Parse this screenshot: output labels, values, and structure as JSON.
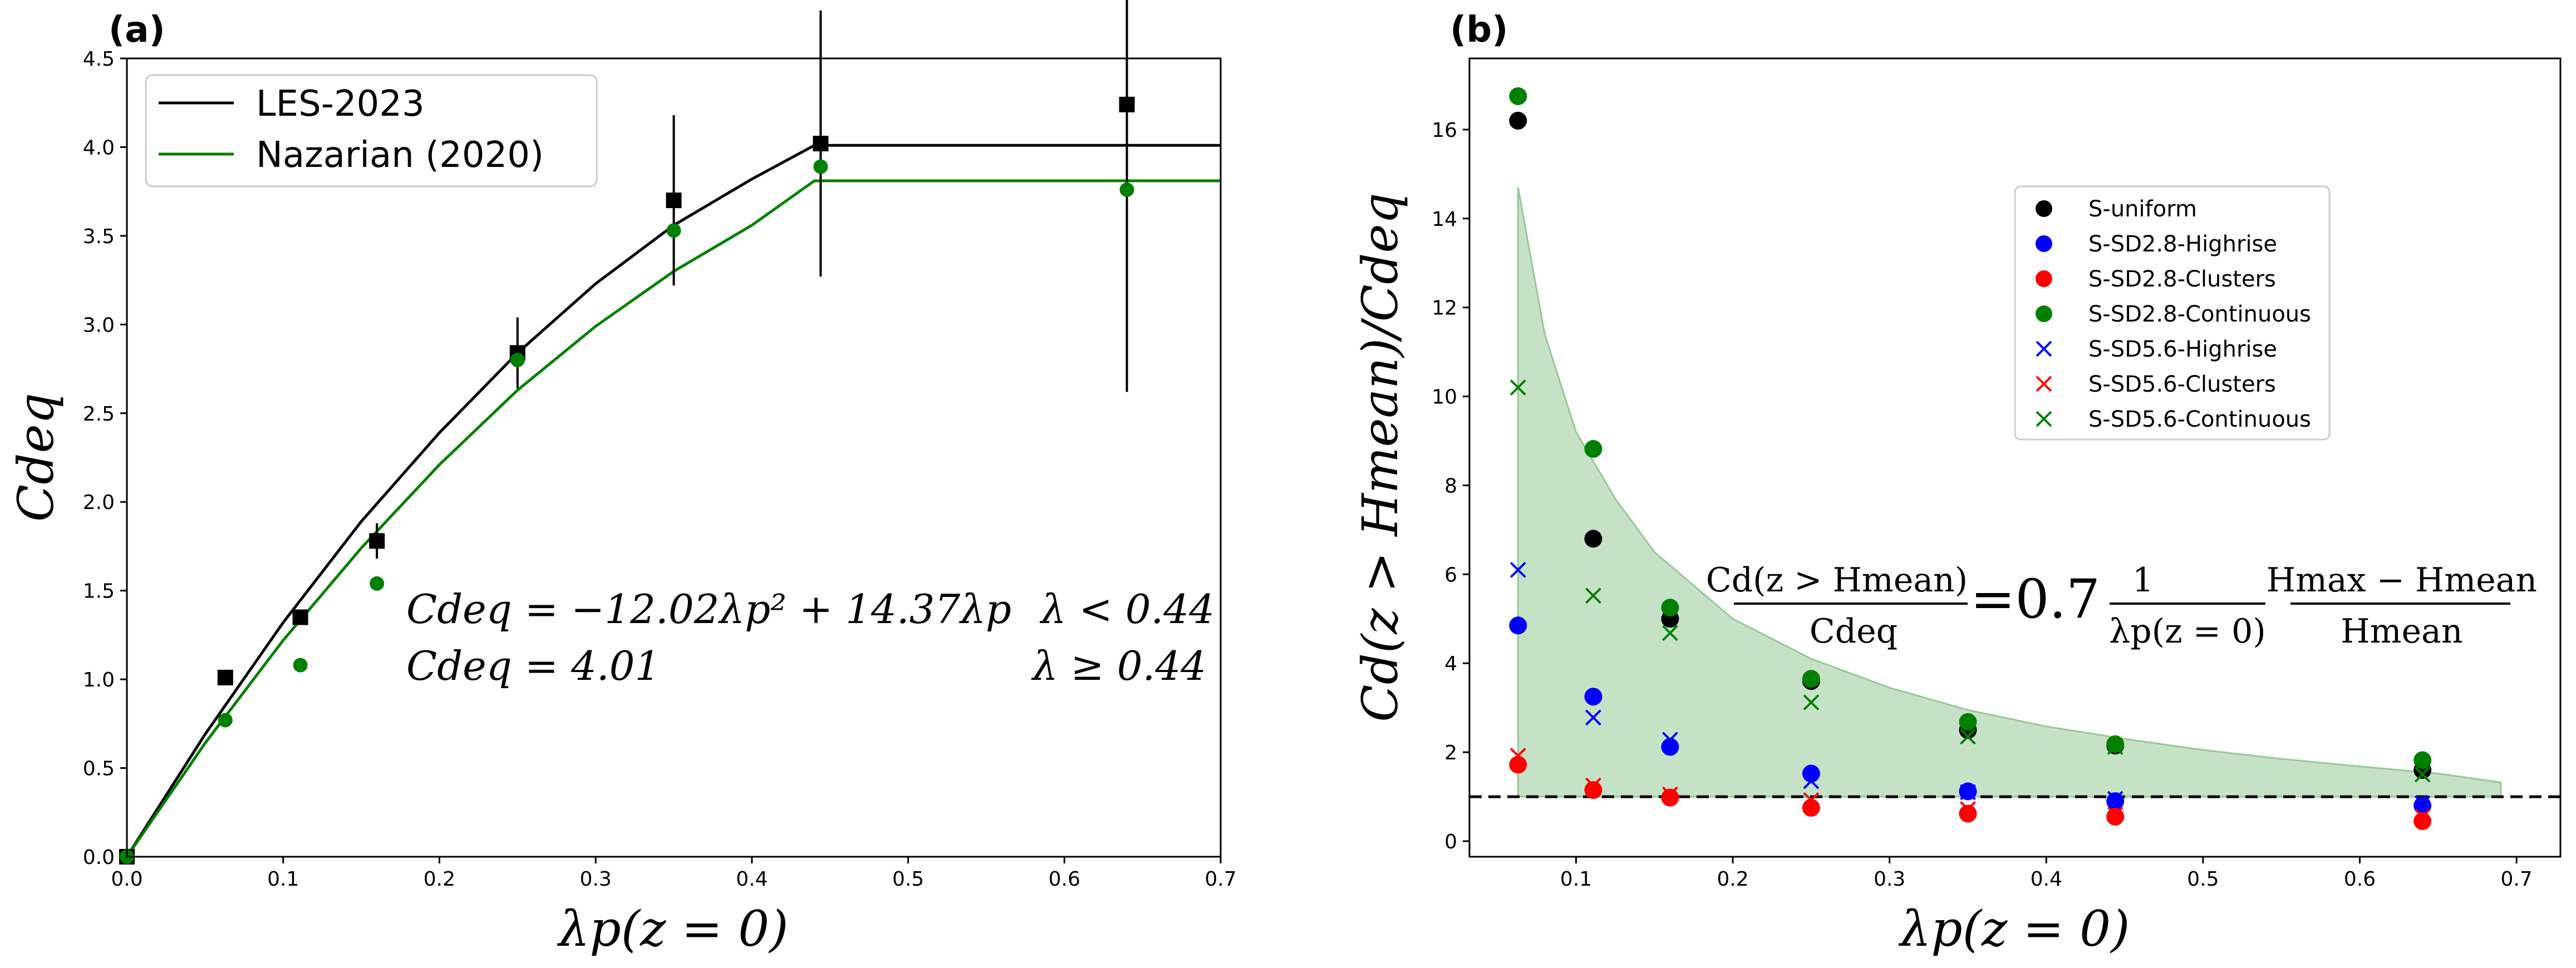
{
  "figure": {
    "panel_a_tag": "(a)",
    "panel_b_tag": "(b)",
    "equation_a_line1": "Cdeq = −12.02λp² + 14.37λp",
    "equation_a_cond1": "λ < 0.44",
    "equation_a_line2": "Cdeq = 4.01",
    "equation_a_cond2": "λ ≥ 0.44",
    "equation_b_num": "Cd(z > Hmean)",
    "equation_b_den": "Cdeq",
    "equation_b_coef": "=0.7",
    "equation_b_frac2_num": "1",
    "equation_b_frac2_den": "λp(z = 0)",
    "equation_b_frac3_num": "Hmax − Hmean",
    "equation_b_frac3_den": "Hmean"
  },
  "colors": {
    "black": "#000000",
    "green": "#008000",
    "blue": "#0000ff",
    "red": "#ff0000",
    "band_fill": "#c6e2c6",
    "band_edge": "#96c896"
  },
  "chart_data": [
    {
      "type": "line",
      "panel": "(a)",
      "xlabel": "λp(z = 0)",
      "ylabel": "Cdeq",
      "xlim": [
        0.0,
        0.7
      ],
      "ylim": [
        0.0,
        4.5
      ],
      "xticks": [
        "0.0",
        "0.1",
        "0.2",
        "0.3",
        "0.4",
        "0.5",
        "0.6",
        "0.7"
      ],
      "yticks": [
        "0.0",
        "0.5",
        "1.0",
        "1.5",
        "2.0",
        "2.5",
        "3.0",
        "3.5",
        "4.0",
        "4.5"
      ],
      "legend_position": "top-left",
      "grid": false,
      "series": [
        {
          "name": "LES-2023",
          "kind": "curve",
          "color": "#000000",
          "x": [
            0.0,
            0.05,
            0.1,
            0.15,
            0.2,
            0.25,
            0.3,
            0.35,
            0.4,
            0.44,
            0.45,
            0.5,
            0.55,
            0.6,
            0.65,
            0.7
          ],
          "y": [
            0.0,
            0.69,
            1.32,
            1.89,
            2.39,
            2.84,
            3.23,
            3.56,
            3.82,
            4.01,
            4.01,
            4.01,
            4.01,
            4.01,
            4.01,
            4.01
          ]
        },
        {
          "name": "Nazarian (2020)",
          "kind": "curve",
          "color": "#008000",
          "x": [
            0.0,
            0.05,
            0.1,
            0.15,
            0.2,
            0.25,
            0.3,
            0.35,
            0.4,
            0.44,
            0.45,
            0.5,
            0.55,
            0.6,
            0.65,
            0.7
          ],
          "y": [
            0.0,
            0.64,
            1.22,
            1.74,
            2.21,
            2.63,
            2.99,
            3.3,
            3.56,
            3.81,
            3.81,
            3.81,
            3.81,
            3.81,
            3.81,
            3.81
          ]
        },
        {
          "name": "",
          "kind": "square-markers",
          "color": "#000000",
          "x": [
            0.0,
            0.063,
            0.111,
            0.16,
            0.25,
            0.35,
            0.444,
            0.64
          ],
          "y": [
            0.0,
            1.01,
            1.35,
            1.78,
            2.84,
            3.7,
            4.02,
            4.24
          ],
          "err": [
            0,
            0,
            0,
            0.1,
            0.2,
            0.48,
            0.75,
            1.62
          ]
        },
        {
          "name": "",
          "kind": "circle-markers",
          "color": "#008000",
          "x": [
            0.0,
            0.063,
            0.111,
            0.16,
            0.25,
            0.35,
            0.444,
            0.64
          ],
          "y": [
            0.0,
            0.77,
            1.08,
            1.54,
            2.8,
            3.53,
            3.89,
            3.76
          ]
        }
      ]
    },
    {
      "type": "scatter",
      "panel": "(b)",
      "xlabel": "λp(z = 0)",
      "ylabel": "Cd(z > Hmean)/Cdeq",
      "xlim": [
        0.032,
        0.728
      ],
      "ylim": [
        -0.35,
        17.6
      ],
      "xticks": [
        "0.1",
        "0.2",
        "0.3",
        "0.4",
        "0.5",
        "0.6",
        "0.7"
      ],
      "yticks": [
        "0",
        "2",
        "4",
        "6",
        "8",
        "10",
        "12",
        "14",
        "16"
      ],
      "legend_position": "upper-center",
      "grid": false,
      "reference_line_y": 1.0,
      "band": {
        "x": [
          0.063,
          0.08,
          0.1,
          0.125,
          0.15,
          0.2,
          0.25,
          0.3,
          0.35,
          0.4,
          0.45,
          0.5,
          0.55,
          0.6,
          0.65,
          0.69
        ],
        "upper": [
          14.7,
          11.4,
          9.2,
          7.7,
          6.5,
          5.0,
          4.1,
          3.45,
          2.95,
          2.58,
          2.3,
          2.05,
          1.85,
          1.68,
          1.52,
          1.32
        ],
        "lower": [
          1.0,
          1.0,
          1.0,
          1.0,
          1.0,
          1.0,
          1.0,
          1.0,
          1.0,
          1.0,
          1.0,
          1.0,
          1.0,
          1.0,
          1.0,
          1.0
        ]
      },
      "series": [
        {
          "name": "S-uniform",
          "marker": "circle",
          "color": "#000000",
          "x": [
            0.063,
            0.111,
            0.16,
            0.25,
            0.35,
            0.444,
            0.64
          ],
          "y": [
            16.2,
            6.8,
            5.0,
            3.6,
            2.5,
            2.15,
            1.6
          ]
        },
        {
          "name": "S-SD2.8-Highrise",
          "marker": "circle",
          "color": "#0000ff",
          "x": [
            0.063,
            0.111,
            0.16,
            0.25,
            0.35,
            0.444,
            0.64
          ],
          "y": [
            4.85,
            3.25,
            2.12,
            1.52,
            1.12,
            0.9,
            0.8
          ]
        },
        {
          "name": "S-SD2.8-Clusters",
          "marker": "circle",
          "color": "#ff0000",
          "x": [
            0.063,
            0.111,
            0.16,
            0.25,
            0.35,
            0.444,
            0.64
          ],
          "y": [
            1.72,
            1.15,
            0.98,
            0.75,
            0.62,
            0.55,
            0.45
          ]
        },
        {
          "name": "S-SD2.8-Continuous",
          "marker": "circle",
          "color": "#008000",
          "x": [
            0.063,
            0.111,
            0.16,
            0.25,
            0.35,
            0.444,
            0.64
          ],
          "y": [
            16.75,
            8.82,
            5.25,
            3.65,
            2.68,
            2.18,
            1.82
          ]
        },
        {
          "name": "S-SD5.6-Highrise",
          "marker": "x",
          "color": "#0000ff",
          "x": [
            0.063,
            0.111,
            0.16,
            0.25,
            0.35,
            0.444,
            0.64
          ],
          "y": [
            6.1,
            2.78,
            2.28,
            1.35,
            1.1,
            0.95,
            0.85
          ]
        },
        {
          "name": "S-SD5.6-Clusters",
          "marker": "x",
          "color": "#ff0000",
          "x": [
            0.063,
            0.111,
            0.16,
            0.25,
            0.35,
            0.444,
            0.64
          ],
          "y": [
            1.92,
            1.25,
            1.05,
            0.92,
            0.72,
            0.6,
            0.55
          ]
        },
        {
          "name": "S-SD5.6-Continuous",
          "marker": "x",
          "color": "#008000",
          "x": [
            0.063,
            0.111,
            0.16,
            0.25,
            0.35,
            0.444,
            0.64
          ],
          "y": [
            10.2,
            5.52,
            4.68,
            3.12,
            2.35,
            2.12,
            1.5
          ]
        }
      ]
    }
  ]
}
